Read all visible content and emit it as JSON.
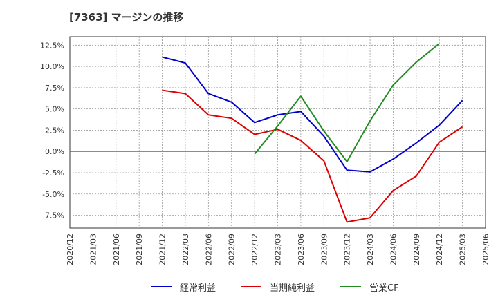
{
  "title": "[7363]  マージンの推移",
  "chart_data": {
    "type": "line",
    "x": [
      "2020/12",
      "2021/03",
      "2021/06",
      "2021/09",
      "2021/12",
      "2022/03",
      "2022/06",
      "2022/09",
      "2022/12",
      "2023/03",
      "2023/06",
      "2023/09",
      "2023/12",
      "2024/03",
      "2024/06",
      "2024/09",
      "2024/12",
      "2025/03",
      "2025/06"
    ],
    "x_tick_labels": [
      "2020/12",
      "2021/03",
      "2021/06",
      "2021/09",
      "2021/12",
      "2022/03",
      "2022/06",
      "2022/09",
      "2022/12",
      "2023/03",
      "2023/06",
      "2023/09",
      "2023/12",
      "2024/03",
      "2024/06",
      "2024/09",
      "2024/12",
      "2025/03",
      "2025/06"
    ],
    "y_ticks": [
      12.5,
      10.0,
      7.5,
      5.0,
      2.5,
      0.0,
      -2.5,
      -5.0,
      -7.5
    ],
    "y_tick_labels": [
      "12.5%",
      "10.0%",
      "7.5%",
      "5.0%",
      "2.5%",
      "0.0%",
      "-2.5%",
      "-5.0%",
      "-7.5%"
    ],
    "ylim": [
      -9.0,
      13.5
    ],
    "grid": true,
    "legend_position": "bottom",
    "series": [
      {
        "name": "経常利益",
        "color": "#0000cc",
        "values": [
          null,
          null,
          null,
          null,
          11.1,
          10.4,
          6.8,
          5.8,
          3.4,
          4.3,
          4.7,
          1.8,
          -2.2,
          -2.4,
          -0.9,
          1.0,
          3.1,
          6.0,
          null
        ]
      },
      {
        "name": "当期純利益",
        "color": "#dd0000",
        "values": [
          null,
          null,
          null,
          null,
          7.2,
          6.8,
          4.3,
          3.9,
          2.0,
          2.6,
          1.3,
          -1.1,
          -8.3,
          -7.8,
          -4.6,
          -2.9,
          1.1,
          2.9,
          null
        ]
      },
      {
        "name": "営業CF",
        "color": "#228b22",
        "values": [
          null,
          null,
          null,
          null,
          null,
          null,
          null,
          null,
          -0.3,
          3.0,
          6.5,
          2.4,
          -1.2,
          3.6,
          7.8,
          10.5,
          12.7,
          null,
          null
        ]
      }
    ]
  }
}
